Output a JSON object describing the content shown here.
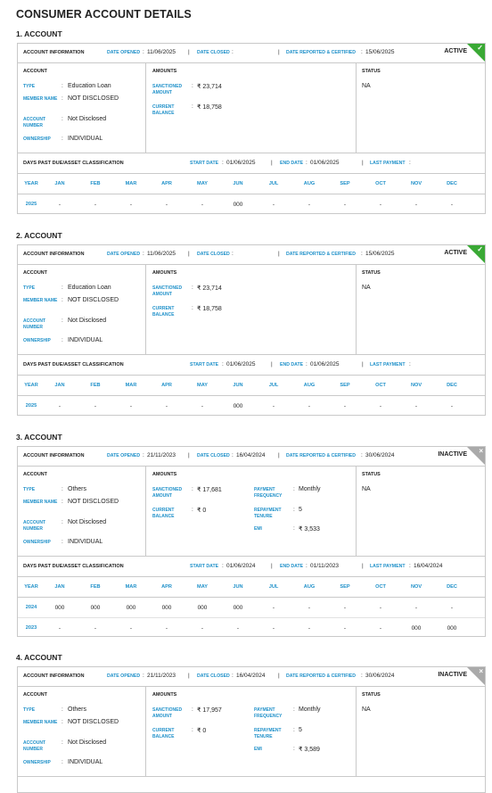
{
  "page_title": "CONSUMER ACCOUNT DETAILS",
  "labels": {
    "account_information": "ACCOUNT INFORMATION",
    "date_opened": "DATE OPENED",
    "date_closed": "DATE CLOSED",
    "date_reported": "DATE REPORTED & CERTIFIED",
    "account_section": "ACCOUNT",
    "amounts_section": "AMOUNTS",
    "status_section": "STATUS",
    "type": "TYPE",
    "member_name": "MEMBER NAME",
    "account_number": "ACCOUNT NUMBER",
    "ownership": "OWNERSHIP",
    "sanctioned_amount": "SANCTIONED AMOUNT",
    "current_balance": "CURRENT BALANCE",
    "payment_frequency": "PAYMENT FREQUENCY",
    "repayment_tenure": "REPAYMENT TENURE",
    "emi": "EMI",
    "dpd_title": "DAYS PAST DUE/ASSET CLASSIFICATION",
    "start_date": "START DATE",
    "end_date": "END DATE",
    "last_payment": "LAST PAYMENT",
    "months": [
      "YEAR",
      "JAN",
      "FEB",
      "MAR",
      "APR",
      "MAY",
      "JUN",
      "JUL",
      "AUG",
      "SEP",
      "OCT",
      "NOV",
      "DEC"
    ]
  },
  "accounts": [
    {
      "heading": "1. ACCOUNT",
      "date_opened": "11/06/2025",
      "date_closed": "",
      "date_reported": "15/06/2025",
      "status_badge": "ACTIVE",
      "badge_color": "#3aa935",
      "type": "Education Loan",
      "member_name": "NOT DISCLOSED",
      "account_number": "Not Disclosed",
      "ownership": "INDIVIDUAL",
      "sanctioned_amount": "₹ 23,714",
      "current_balance": "₹ 18,758",
      "status": "NA",
      "start_date": "01/06/2025",
      "end_date": "01/06/2025",
      "last_payment": "",
      "years": [
        {
          "year": "2025",
          "values": [
            "-",
            "-",
            "-",
            "-",
            "-",
            "000",
            "-",
            "-",
            "-",
            "-",
            "-",
            "-"
          ]
        }
      ]
    },
    {
      "heading": "2. ACCOUNT",
      "date_opened": "11/06/2025",
      "date_closed": "",
      "date_reported": "15/06/2025",
      "status_badge": "ACTIVE",
      "badge_color": "#3aa935",
      "type": "Education Loan",
      "member_name": "NOT DISCLOSED",
      "account_number": "Not Disclosed",
      "ownership": "INDIVIDUAL",
      "sanctioned_amount": "₹ 23,714",
      "current_balance": "₹ 18,758",
      "status": "NA",
      "start_date": "01/06/2025",
      "end_date": "01/06/2025",
      "last_payment": "",
      "years": [
        {
          "year": "2025",
          "values": [
            "-",
            "-",
            "-",
            "-",
            "-",
            "000",
            "-",
            "-",
            "-",
            "-",
            "-",
            "-"
          ]
        }
      ]
    },
    {
      "heading": "3. ACCOUNT",
      "date_opened": "21/11/2023",
      "date_closed": "16/04/2024",
      "date_reported": "30/06/2024",
      "status_badge": "INACTIVE",
      "badge_color": "#aaaaaa",
      "type": "Others",
      "member_name": "NOT DISCLOSED",
      "account_number": "Not Disclosed",
      "ownership": "INDIVIDUAL",
      "sanctioned_amount": "₹ 17,681",
      "current_balance": "₹ 0",
      "payment_frequency": "Monthly",
      "repayment_tenure": "5",
      "emi": "₹ 3,533",
      "status": "NA",
      "start_date": "01/06/2024",
      "end_date": "01/11/2023",
      "last_payment": "16/04/2024",
      "years": [
        {
          "year": "2024",
          "values": [
            "000",
            "000",
            "000",
            "000",
            "000",
            "000",
            "-",
            "-",
            "-",
            "-",
            "-",
            "-"
          ]
        },
        {
          "year": "2023",
          "values": [
            "-",
            "-",
            "-",
            "-",
            "-",
            "-",
            "-",
            "-",
            "-",
            "-",
            "000",
            "000"
          ]
        }
      ]
    },
    {
      "heading": "4. ACCOUNT",
      "date_opened": "21/11/2023",
      "date_closed": "16/04/2024",
      "date_reported": "30/06/2024",
      "status_badge": "INACTIVE",
      "badge_color": "#aaaaaa",
      "type": "Others",
      "member_name": "NOT DISCLOSED",
      "account_number": "Not Disclosed",
      "ownership": "INDIVIDUAL",
      "sanctioned_amount": "₹ 17,957",
      "current_balance": "₹ 0",
      "payment_frequency": "Monthly",
      "repayment_tenure": "5",
      "emi": "₹ 3,589",
      "status": "NA"
    }
  ]
}
